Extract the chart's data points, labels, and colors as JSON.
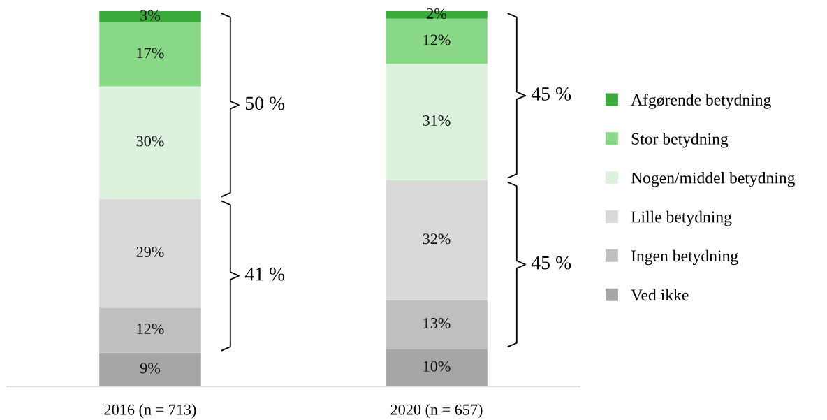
{
  "chart_data": {
    "type": "bar",
    "stacked": true,
    "categories": [
      "2016 (n = 713)",
      "2020 (n = 657)"
    ],
    "series": [
      {
        "name": "Ved ikke",
        "color": "#a6a6a6",
        "values": [
          9,
          10
        ],
        "value_labels": [
          "9%",
          "10%"
        ]
      },
      {
        "name": "Ingen betydning",
        "color": "#bfbfbf",
        "values": [
          12,
          13
        ],
        "value_labels": [
          "12%",
          "13%"
        ]
      },
      {
        "name": "Lille betydning",
        "color": "#d9d9d9",
        "values": [
          29,
          32
        ],
        "value_labels": [
          "29%",
          "32%"
        ]
      },
      {
        "name": "Nogen/middel betydning",
        "color": "#dcf2dc",
        "values": [
          30,
          31
        ],
        "value_labels": [
          "30%",
          "31%"
        ]
      },
      {
        "name": "Stor betydning",
        "color": "#88d888",
        "values": [
          17,
          12
        ],
        "value_labels": [
          "17%",
          "12%"
        ]
      },
      {
        "name": "Afgørende betydning",
        "color": "#3aaa3a",
        "values": [
          3,
          2
        ],
        "value_labels": [
          "3%",
          "2%"
        ]
      }
    ],
    "annotations": [
      "50 %",
      "41 %",
      "45 %",
      "45 %"
    ],
    "legend": "right",
    "grid": false
  }
}
